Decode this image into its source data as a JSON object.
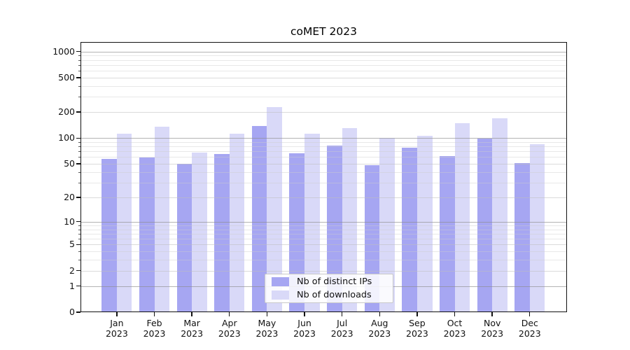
{
  "title": "coMET 2023",
  "chart_data": {
    "type": "bar",
    "title": "coMET 2023",
    "xlabel": "",
    "ylabel": "",
    "x_labels": [
      [
        "Jan",
        "2023"
      ],
      [
        "Feb",
        "2023"
      ],
      [
        "Mar",
        "2023"
      ],
      [
        "Apr",
        "2023"
      ],
      [
        "May",
        "2023"
      ],
      [
        "Jun",
        "2023"
      ],
      [
        "Jul",
        "2023"
      ],
      [
        "Aug",
        "2023"
      ],
      [
        "Sep",
        "2023"
      ],
      [
        "Oct",
        "2023"
      ],
      [
        "Nov",
        "2023"
      ],
      [
        "Dec",
        "2023"
      ]
    ],
    "series": [
      {
        "name": "Nb of distinct IPs",
        "color": "#a6a6f2",
        "values": [
          57,
          59,
          50,
          65,
          138,
          67,
          82,
          48,
          77,
          62,
          98,
          51
        ]
      },
      {
        "name": "Nb of downloads",
        "color": "#d9d9f8",
        "values": [
          113,
          136,
          68,
          113,
          230,
          113,
          130,
          100,
          106,
          150,
          169,
          85
        ]
      }
    ],
    "yscale": "log1p",
    "yticks": [
      0,
      1,
      2,
      5,
      10,
      20,
      50,
      100,
      200,
      500,
      1000
    ],
    "ylim": [
      0,
      1300
    ],
    "grid": true,
    "legend_position": "lower center",
    "colors": {
      "grid_decade": "rgba(140,140,140,0.65)",
      "grid_labeled": "rgba(190,190,190,0.55)",
      "grid_minor": "rgba(205,205,205,0.45)",
      "axis": "#111111",
      "background": "#ffffff"
    }
  }
}
